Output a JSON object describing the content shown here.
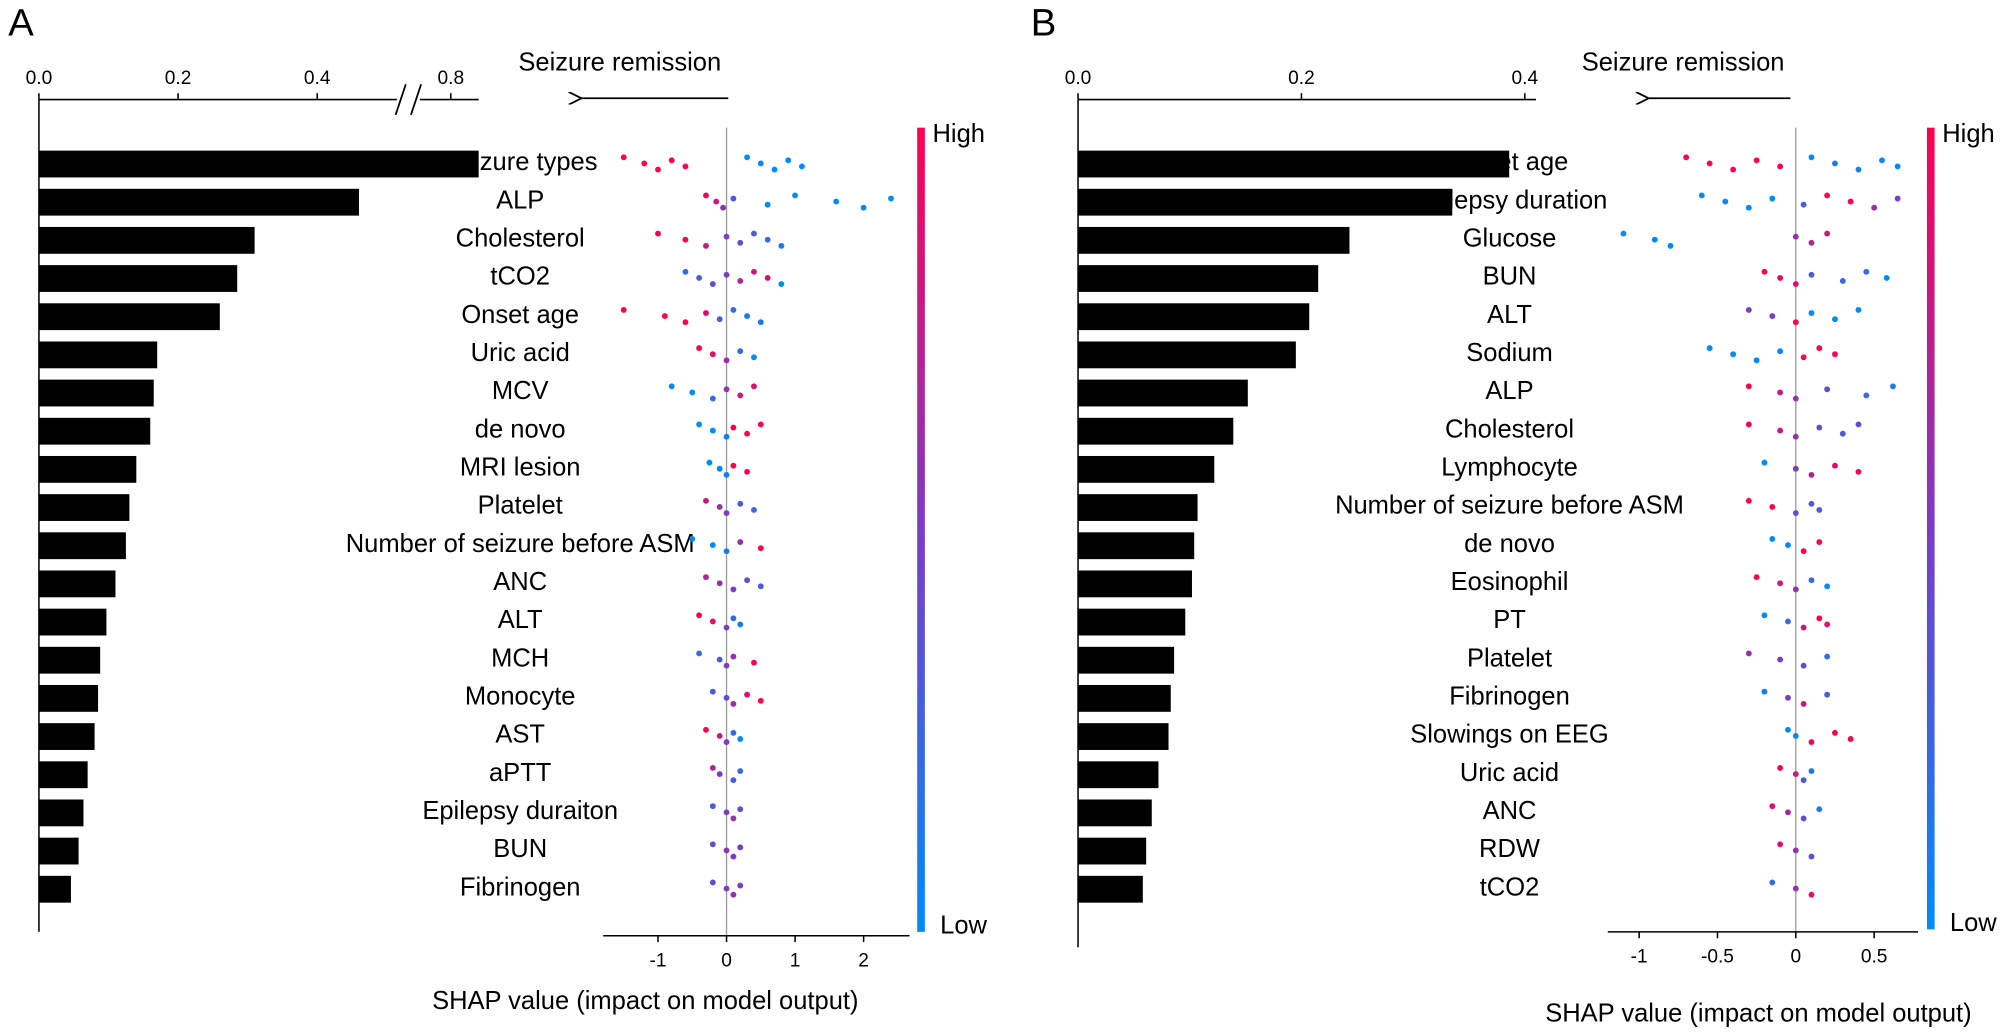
{
  "chart_data": [
    {
      "type": "shap_summary",
      "label": "A",
      "title": "Seizure remission",
      "features": [
        "Seizure types",
        "ALP",
        "Cholesterol",
        "tCO2",
        "Onset age",
        "Uric acid",
        "MCV",
        "de novo",
        "MRI lesion",
        "Platelet",
        "Number of seizure before ASM",
        "ANC",
        "ALT",
        "MCH",
        "Monocyte",
        "AST",
        "aPTT",
        "Epilepsy duraiton",
        "BUN",
        "Fibrinogen"
      ],
      "importance": [
        0.84,
        0.46,
        0.31,
        0.285,
        0.26,
        0.17,
        0.165,
        0.16,
        0.14,
        0.13,
        0.125,
        0.11,
        0.097,
        0.088,
        0.085,
        0.08,
        0.07,
        0.064,
        0.057,
        0.046
      ],
      "xlim": [
        0,
        0.84
      ],
      "xbreak": [
        0.52,
        0.75
      ],
      "xticks": [
        {
          "value": 0,
          "label": "0.0"
        },
        0.2,
        0.4,
        0.8
      ],
      "shap_xlim": [
        -1.8,
        2.67
      ],
      "shap_xticks": [
        -1,
        0,
        1,
        2
      ],
      "shap_xlabel": "SHAP value (impact on model output)",
      "colorbar": {
        "high": "High",
        "low": "Low"
      },
      "points": [
        [
          -1.5,
          -1.2,
          -1.0,
          -0.8,
          -0.6,
          0.3,
          0.5,
          0.7,
          0.9,
          1.1
        ],
        [
          -0.3,
          -0.15,
          -0.05,
          0.1,
          0.6,
          1.0,
          1.6,
          2.0,
          2.4
        ],
        [
          -1.0,
          -0.6,
          -0.3,
          0,
          0.2,
          0.4,
          0.6,
          0.8
        ],
        [
          -0.6,
          -0.4,
          -0.2,
          0,
          0.2,
          0.4,
          0.6,
          0.8
        ],
        [
          -1.5,
          -0.9,
          -0.6,
          -0.3,
          -0.1,
          0.1,
          0.3,
          0.5
        ],
        [
          -0.4,
          -0.2,
          0,
          0.2,
          0.4
        ],
        [
          -0.8,
          -0.5,
          -0.2,
          0,
          0.2,
          0.4
        ],
        [
          -0.4,
          -0.2,
          0,
          0.1,
          0.3,
          0.5
        ],
        [
          -0.25,
          -0.1,
          0,
          0.1,
          0.3
        ],
        [
          -0.3,
          -0.1,
          0,
          0.2,
          0.4
        ],
        [
          -0.5,
          -0.2,
          0,
          0.2,
          0.5
        ],
        [
          -0.3,
          -0.1,
          0.1,
          0.3,
          0.5
        ],
        [
          -0.4,
          -0.2,
          0,
          0.1,
          0.2
        ],
        [
          -0.4,
          -0.1,
          0,
          0.1,
          0.4
        ],
        [
          -0.2,
          0,
          0.1,
          0.3,
          0.5
        ],
        [
          -0.3,
          -0.1,
          0,
          0.1,
          0.2
        ],
        [
          -0.2,
          -0.1,
          0.1,
          0.2
        ],
        [
          -0.2,
          0,
          0.1,
          0.2
        ],
        [
          -0.2,
          0,
          0.1,
          0.2
        ],
        [
          -0.2,
          0,
          0.1,
          0.2
        ]
      ],
      "levels": [
        [
          1,
          1,
          1,
          1,
          1,
          0,
          0,
          0,
          0,
          0
        ],
        [
          1,
          0.8,
          0.6,
          0.3,
          0,
          0,
          0,
          0,
          0
        ],
        [
          1,
          1,
          0.8,
          0.5,
          0.4,
          0.3,
          0.2,
          0.1
        ],
        [
          0.2,
          0.3,
          0.4,
          0.5,
          0.7,
          0.8,
          0.9,
          0
        ],
        [
          1,
          1,
          1,
          0.9,
          0.3,
          0.2,
          0.1,
          0.1
        ],
        [
          1,
          0.9,
          0.6,
          0.2,
          0
        ],
        [
          0,
          0,
          0.2,
          0.6,
          0.8,
          0.9
        ],
        [
          0,
          0,
          0.1,
          1,
          1,
          1
        ],
        [
          0,
          0,
          0.1,
          1,
          1
        ],
        [
          0.8,
          0.6,
          0.5,
          0.3,
          0.2
        ],
        [
          0,
          0,
          0.1,
          0.6,
          1
        ],
        [
          0.7,
          0.6,
          0.5,
          0.4,
          0.3
        ],
        [
          1,
          0.9,
          0.5,
          0.2,
          0.1
        ],
        [
          0.2,
          0.3,
          0.5,
          0.6,
          1
        ],
        [
          0.3,
          0.4,
          0.6,
          0.9,
          1
        ],
        [
          1,
          0.8,
          0.5,
          0.2,
          0
        ],
        [
          0.7,
          0.5,
          0.3,
          0.2
        ],
        [
          0.3,
          0.5,
          0.6,
          0.4
        ],
        [
          0.4,
          0.6,
          0.5,
          0.5
        ],
        [
          0.4,
          0.5,
          0.6,
          0.5
        ]
      ]
    },
    {
      "type": "shap_summary",
      "label": "B",
      "title": "Seizure remission",
      "features": [
        "Onset age",
        "Epilepsy duration",
        "Glucose",
        "BUN",
        "ALT",
        "Sodium",
        "ALP",
        "Cholesterol",
        "Lymphocyte",
        "Number of seizure before ASM",
        "de novo",
        "Eosinophil",
        "PT",
        "Platelet",
        "Fibrinogen",
        "Slowings on EEG",
        "Uric acid",
        "ANC",
        "RDW",
        "tCO2"
      ],
      "importance": [
        0.386,
        0.335,
        0.243,
        0.215,
        0.207,
        0.195,
        0.152,
        0.139,
        0.122,
        0.107,
        0.104,
        0.102,
        0.096,
        0.086,
        0.083,
        0.081,
        0.072,
        0.066,
        0.061,
        0.058
      ],
      "xlim": [
        0,
        0.41
      ],
      "xticks": [
        {
          "value": 0,
          "label": "0.0"
        },
        0.2,
        0.4
      ],
      "shap_xlim": [
        -1.2,
        0.78
      ],
      "shap_xticks": [
        -1,
        -0.5,
        0,
        0.5
      ],
      "shap_xlabel": "SHAP value (impact on model output)",
      "colorbar": {
        "high": "High",
        "low": "Low"
      },
      "points": [
        [
          -0.7,
          -0.55,
          -0.4,
          -0.25,
          -0.1,
          0.1,
          0.25,
          0.4,
          0.55,
          0.65
        ],
        [
          -0.6,
          -0.45,
          -0.3,
          -0.15,
          0.05,
          0.2,
          0.35,
          0.5,
          0.65
        ],
        [
          -1.1,
          -0.9,
          -0.8,
          0,
          0.1,
          0.2
        ],
        [
          -0.2,
          -0.1,
          0,
          0.1,
          0.3,
          0.45,
          0.58
        ],
        [
          -0.3,
          -0.15,
          0,
          0.1,
          0.25,
          0.4
        ],
        [
          -0.55,
          -0.4,
          -0.25,
          -0.1,
          0.05,
          0.15,
          0.25
        ],
        [
          -0.3,
          -0.1,
          0,
          0.2,
          0.45,
          0.62
        ],
        [
          -0.3,
          -0.1,
          0,
          0.15,
          0.3,
          0.4
        ],
        [
          -0.2,
          0,
          0.1,
          0.25,
          0.4
        ],
        [
          -0.3,
          -0.15,
          0,
          0.1,
          0.15
        ],
        [
          -0.15,
          -0.05,
          0.05,
          0.15
        ],
        [
          -0.25,
          -0.1,
          0,
          0.1,
          0.2
        ],
        [
          -0.2,
          -0.05,
          0.05,
          0.15,
          0.2
        ],
        [
          -0.3,
          -0.1,
          0.05,
          0.2
        ],
        [
          -0.2,
          -0.05,
          0.05,
          0.2
        ],
        [
          -0.05,
          0,
          0.1,
          0.25,
          0.35
        ],
        [
          -0.1,
          0,
          0.05,
          0.1
        ],
        [
          -0.15,
          -0.05,
          0.05,
          0.15
        ],
        [
          -0.1,
          0,
          0.1
        ],
        [
          -0.15,
          0,
          0.1
        ]
      ],
      "levels": [
        [
          1,
          1,
          1,
          1,
          1,
          0,
          0.1,
          0.1,
          0,
          0
        ],
        [
          0,
          0,
          0,
          0,
          0.3,
          1,
          1,
          0.6,
          0.5
        ],
        [
          0,
          0,
          0,
          0.6,
          0.7,
          0.8
        ],
        [
          1,
          1,
          0.9,
          0.3,
          0.2,
          0.2,
          0
        ],
        [
          0.5,
          0.5,
          1,
          0,
          0,
          0
        ],
        [
          0,
          0,
          0,
          0,
          1,
          1,
          1
        ],
        [
          1,
          0.8,
          0.6,
          0.4,
          0.2,
          0.1
        ],
        [
          1,
          0.8,
          0.6,
          0.4,
          0.3,
          0.4
        ],
        [
          0,
          0.5,
          0.7,
          0.9,
          1
        ],
        [
          1,
          1,
          0.4,
          0.3,
          0.3
        ],
        [
          0,
          0,
          1,
          1
        ],
        [
          1,
          0.8,
          0.6,
          0.2,
          0
        ],
        [
          0,
          0.2,
          0.8,
          1,
          0.9
        ],
        [
          0.6,
          0.5,
          0.4,
          0.2
        ],
        [
          0.1,
          0.5,
          0.8,
          0.3
        ],
        [
          0,
          0,
          1,
          1,
          1
        ],
        [
          1,
          0.8,
          0.3,
          0.1
        ],
        [
          0.9,
          0.7,
          0.4,
          0.1
        ],
        [
          0.9,
          0.6,
          0.4
        ],
        [
          0.2,
          0.6,
          0.9
        ]
      ]
    }
  ]
}
